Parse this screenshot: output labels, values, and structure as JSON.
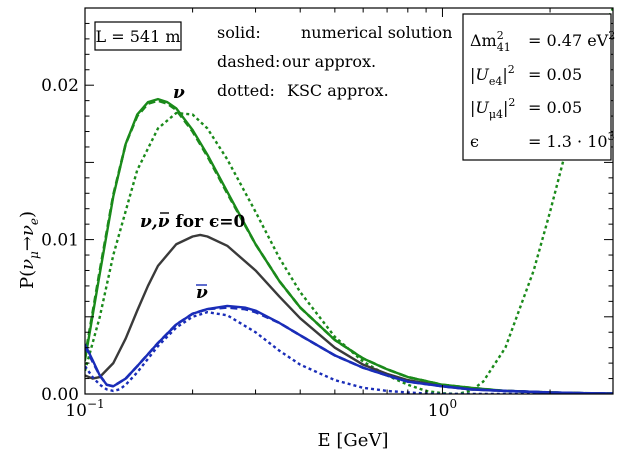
{
  "chart_data": {
    "type": "line",
    "x_scale": "log",
    "xlim": [
      0.1,
      3.0
    ],
    "ylim": [
      0.0,
      0.025
    ],
    "xlabel": "E [GeV]",
    "ylabel": "P(ν_μ→ν_e)",
    "y_ticks": [
      {
        "value": 0.0,
        "label": "0.00"
      },
      {
        "value": 0.01,
        "label": "0.01"
      },
      {
        "value": 0.02,
        "label": "0.02"
      }
    ],
    "x_ticks": [
      {
        "value": 0.1,
        "base": "10",
        "exp": "−1"
      },
      {
        "value": 1.0,
        "base": "10",
        "exp": "0"
      }
    ],
    "colors": {
      "nu": "#1a8a1a",
      "antinu": "#1a2db8",
      "eps0": "#3a3a3a"
    },
    "baseline_label": "L = 541 m",
    "legend": {
      "solid": {
        "key": "solid:",
        "desc": "numerical solution"
      },
      "dashed": {
        "key": "dashed:",
        "desc": "our approx."
      },
      "dotted": {
        "key": "dotted:",
        "desc": "KSC approx."
      }
    },
    "params": {
      "dm2": {
        "name": "Δm",
        "sub": "41",
        "sup": "2",
        "value": "= 0.47 eV",
        "unit_sup": "2"
      },
      "ue4": {
        "name": "|U",
        "sub": "e4",
        "close": "|",
        "sup": "2",
        "value": "= 0.05"
      },
      "umu4": {
        "name": "|U",
        "sub": "μ4",
        "close": "|",
        "sup": "2",
        "value": "= 0.05"
      },
      "eps": {
        "name": "ϵ",
        "value": "= 1.3 · 10",
        "value_sup": "3"
      }
    },
    "curve_labels": {
      "nu": "ν",
      "antinu": "ν",
      "eps0": {
        "nu": "ν,",
        "antinu": "ν",
        "rest": " for ϵ=0"
      }
    },
    "series": [
      {
        "key": "nu_solid",
        "color": "nu",
        "style": "solid",
        "x": [
          0.1,
          0.11,
          0.12,
          0.13,
          0.14,
          0.15,
          0.16,
          0.17,
          0.18,
          0.2,
          0.22,
          0.25,
          0.3,
          0.35,
          0.4,
          0.5,
          0.6,
          0.7,
          0.8,
          1.0,
          1.2,
          1.5,
          2.0,
          2.5,
          3.0
        ],
        "y": [
          0.0022,
          0.0078,
          0.0128,
          0.0162,
          0.0181,
          0.0189,
          0.0191,
          0.0189,
          0.0185,
          0.0171,
          0.0155,
          0.0131,
          0.0097,
          0.0073,
          0.0056,
          0.0035,
          0.0023,
          0.0016,
          0.0011,
          0.0006,
          0.0004,
          0.0002,
          0.0001,
          5e-05,
          3e-05
        ]
      },
      {
        "key": "nu_dashed",
        "color": "nu",
        "style": "dashed",
        "x": [
          0.1,
          0.11,
          0.12,
          0.13,
          0.14,
          0.15,
          0.16,
          0.17,
          0.18,
          0.2,
          0.22,
          0.25,
          0.3,
          0.35,
          0.4,
          0.5,
          0.6,
          0.7,
          0.8,
          1.0,
          1.2,
          1.5,
          2.0,
          2.5,
          3.0
        ],
        "y": [
          0.0024,
          0.008,
          0.0129,
          0.0162,
          0.018,
          0.0188,
          0.019,
          0.0188,
          0.0184,
          0.017,
          0.0154,
          0.013,
          0.0097,
          0.0073,
          0.0056,
          0.0035,
          0.0023,
          0.0016,
          0.0011,
          0.0006,
          0.0004,
          0.0002,
          0.0001,
          5e-05,
          3e-05
        ]
      },
      {
        "key": "nu_dotted",
        "color": "nu",
        "style": "dotted",
        "x": [
          0.1,
          0.11,
          0.12,
          0.14,
          0.16,
          0.18,
          0.2,
          0.22,
          0.25,
          0.3,
          0.35,
          0.4,
          0.5,
          0.6,
          0.7,
          0.8,
          0.9,
          1.0,
          1.1,
          1.2,
          1.3,
          1.5,
          1.8,
          2.0,
          2.2,
          2.5,
          2.8,
          3.0
        ],
        "y": [
          0.0015,
          0.005,
          0.009,
          0.0145,
          0.0172,
          0.0182,
          0.0181,
          0.0172,
          0.0152,
          0.0118,
          0.0088,
          0.0066,
          0.0037,
          0.0021,
          0.0012,
          0.0006,
          0.0002,
          5e-05,
          0.0,
          0.0002,
          0.0008,
          0.003,
          0.008,
          0.0118,
          0.0155,
          0.0203,
          0.0235,
          0.025
        ]
      },
      {
        "key": "eps0_solid",
        "color": "eps0",
        "style": "solid",
        "x": [
          0.1,
          0.105,
          0.11,
          0.12,
          0.13,
          0.14,
          0.15,
          0.16,
          0.18,
          0.2,
          0.21,
          0.22,
          0.25,
          0.3,
          0.35,
          0.4,
          0.5,
          0.6,
          0.7,
          0.8,
          1.0,
          1.2,
          1.5,
          2.0,
          2.5,
          3.0
        ],
        "y": [
          0.0012,
          0.001,
          0.0011,
          0.002,
          0.0036,
          0.0054,
          0.007,
          0.0083,
          0.0097,
          0.0102,
          0.0103,
          0.0102,
          0.0096,
          0.008,
          0.0063,
          0.0049,
          0.003,
          0.0019,
          0.0013,
          0.0009,
          0.0005,
          0.0003,
          0.0002,
          0.0001,
          5e-05,
          3e-05
        ]
      },
      {
        "key": "antinu_solid",
        "color": "antinu",
        "style": "solid",
        "x": [
          0.1,
          0.105,
          0.11,
          0.115,
          0.12,
          0.13,
          0.14,
          0.16,
          0.18,
          0.2,
          0.22,
          0.25,
          0.28,
          0.3,
          0.35,
          0.4,
          0.5,
          0.6,
          0.7,
          0.8,
          1.0,
          1.2,
          1.5,
          2.0,
          2.5,
          3.0
        ],
        "y": [
          0.0032,
          0.0022,
          0.0012,
          0.0006,
          0.0005,
          0.001,
          0.0018,
          0.0033,
          0.0045,
          0.0052,
          0.0055,
          0.0057,
          0.0056,
          0.0054,
          0.0046,
          0.0038,
          0.0025,
          0.0017,
          0.0012,
          0.0008,
          0.0005,
          0.0003,
          0.0002,
          0.0001,
          5e-05,
          3e-05
        ]
      },
      {
        "key": "antinu_dashed",
        "color": "antinu",
        "style": "dashed",
        "x": [
          0.1,
          0.105,
          0.11,
          0.115,
          0.12,
          0.13,
          0.14,
          0.16,
          0.18,
          0.2,
          0.22,
          0.25,
          0.28,
          0.3,
          0.35,
          0.4,
          0.5,
          0.6,
          0.7,
          0.8,
          1.0,
          1.2,
          1.5,
          2.0,
          2.5,
          3.0
        ],
        "y": [
          0.0031,
          0.0021,
          0.0012,
          0.0006,
          0.0005,
          0.001,
          0.0018,
          0.0033,
          0.0045,
          0.0052,
          0.0055,
          0.0056,
          0.0055,
          0.0053,
          0.0046,
          0.0038,
          0.0025,
          0.0017,
          0.0012,
          0.0008,
          0.0005,
          0.0003,
          0.0002,
          0.0001,
          5e-05,
          3e-05
        ]
      },
      {
        "key": "antinu_dotted",
        "color": "antinu",
        "style": "dotted",
        "x": [
          0.1,
          0.105,
          0.11,
          0.115,
          0.12,
          0.125,
          0.13,
          0.14,
          0.16,
          0.18,
          0.2,
          0.22,
          0.25,
          0.3,
          0.35,
          0.4,
          0.5,
          0.6,
          0.7,
          0.8,
          0.9,
          1.0,
          1.2,
          1.5,
          2.0,
          2.5,
          3.0
        ],
        "y": [
          0.0018,
          0.0011,
          0.0006,
          0.0003,
          0.0002,
          0.0003,
          0.0006,
          0.0014,
          0.0031,
          0.0043,
          0.005,
          0.0053,
          0.0051,
          0.004,
          0.0028,
          0.0019,
          0.0009,
          0.0004,
          0.0002,
          0.0001,
          3e-05,
          0.0,
          0.0,
          0.0,
          0.0,
          0.0,
          0.0
        ]
      }
    ]
  }
}
